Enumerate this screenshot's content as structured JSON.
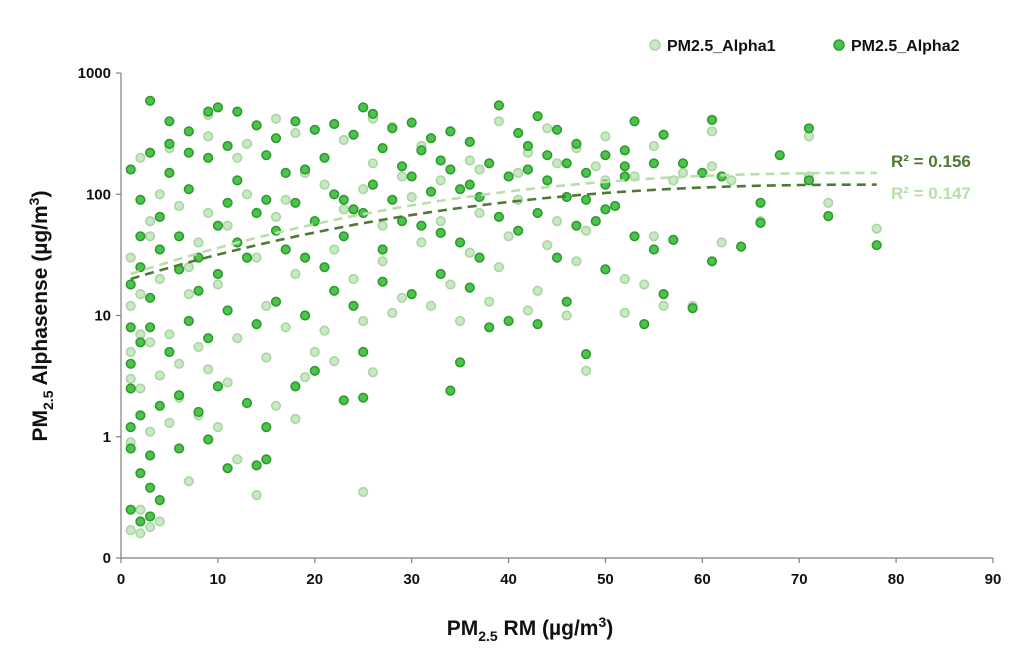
{
  "chart_data": {
    "type": "scatter",
    "xlabel": {
      "pre": "PM",
      "sub": "2.5",
      "post": " RM (µg/m",
      "sup": "3",
      "end": ")"
    },
    "ylabel": {
      "pre": "PM",
      "sub": "2.5",
      "post": "  Alphasense (µg/m",
      "sup": "3",
      "end": ")"
    },
    "xlim": [
      0,
      90
    ],
    "x_ticks": [
      0,
      10,
      20,
      30,
      40,
      50,
      60,
      70,
      80,
      90
    ],
    "y_scale": "log",
    "ylim": [
      0.1,
      1000
    ],
    "y_ticks": [
      {
        "value": 0.1,
        "label": "0"
      },
      {
        "value": 1,
        "label": "1"
      },
      {
        "value": 10,
        "label": "10"
      },
      {
        "value": 100,
        "label": "100"
      },
      {
        "value": 1000,
        "label": "1000"
      }
    ],
    "grid": false,
    "legend_position": "top-right",
    "series": [
      {
        "name": "PM2.5_Alpha1",
        "color": "#c9e8c4",
        "stroke": "#a9d6a2",
        "trendline": {
          "r2_label": "R² = 0.156",
          "from": [
            1,
            20
          ],
          "to": [
            78,
            120
          ]
        },
        "points": [
          [
            1,
            0.17
          ],
          [
            2,
            0.16
          ],
          [
            2,
            0.25
          ],
          [
            3,
            0.18
          ],
          [
            4,
            0.2
          ],
          [
            7,
            0.43
          ],
          [
            14,
            0.33
          ],
          [
            25,
            0.35
          ],
          [
            12,
            0.65
          ],
          [
            1,
            0.9
          ],
          [
            3,
            1.1
          ],
          [
            5,
            1.3
          ],
          [
            8,
            1.5
          ],
          [
            10,
            1.2
          ],
          [
            16,
            1.8
          ],
          [
            18,
            1.4
          ],
          [
            2,
            2.5
          ],
          [
            4,
            3.2
          ],
          [
            6,
            2.1
          ],
          [
            9,
            3.6
          ],
          [
            11,
            2.8
          ],
          [
            15,
            4.5
          ],
          [
            19,
            3.1
          ],
          [
            22,
            4.2
          ],
          [
            26,
            3.4
          ],
          [
            1,
            5
          ],
          [
            3,
            6
          ],
          [
            5,
            7
          ],
          [
            8,
            5.5
          ],
          [
            12,
            6.5
          ],
          [
            17,
            8
          ],
          [
            21,
            7.5
          ],
          [
            25,
            9
          ],
          [
            28,
            10.5
          ],
          [
            32,
            12
          ],
          [
            35,
            9
          ],
          [
            38,
            13
          ],
          [
            42,
            11
          ],
          [
            46,
            10
          ],
          [
            48,
            3.5
          ],
          [
            52,
            10.5
          ],
          [
            2,
            15
          ],
          [
            4,
            20
          ],
          [
            7,
            25
          ],
          [
            10,
            18
          ],
          [
            14,
            30
          ],
          [
            18,
            22
          ],
          [
            22,
            35
          ],
          [
            27,
            28
          ],
          [
            31,
            40
          ],
          [
            36,
            33
          ],
          [
            40,
            45
          ],
          [
            44,
            38
          ],
          [
            48,
            50
          ],
          [
            52,
            20
          ],
          [
            56,
            12
          ],
          [
            59,
            12
          ],
          [
            62,
            40
          ],
          [
            3,
            60
          ],
          [
            6,
            80
          ],
          [
            9,
            70
          ],
          [
            13,
            100
          ],
          [
            17,
            90
          ],
          [
            21,
            120
          ],
          [
            25,
            110
          ],
          [
            29,
            140
          ],
          [
            33,
            130
          ],
          [
            37,
            160
          ],
          [
            41,
            150
          ],
          [
            45,
            180
          ],
          [
            49,
            170
          ],
          [
            53,
            140
          ],
          [
            57,
            130
          ],
          [
            61,
            170
          ],
          [
            66,
            60
          ],
          [
            71,
            140
          ],
          [
            73,
            85
          ],
          [
            78,
            52
          ],
          [
            2,
            200
          ],
          [
            5,
            240
          ],
          [
            9,
            300
          ],
          [
            13,
            260
          ],
          [
            18,
            320
          ],
          [
            23,
            280
          ],
          [
            28,
            360
          ],
          [
            34,
            330
          ],
          [
            39,
            400
          ],
          [
            44,
            350
          ],
          [
            50,
            300
          ],
          [
            55,
            250
          ],
          [
            61,
            330
          ],
          [
            71,
            300
          ],
          [
            1,
            30
          ],
          [
            1,
            12
          ],
          [
            1,
            3
          ],
          [
            2,
            7
          ],
          [
            3,
            45
          ],
          [
            4,
            100
          ],
          [
            6,
            4
          ],
          [
            7,
            15
          ],
          [
            8,
            40
          ],
          [
            11,
            55
          ],
          [
            12,
            200
          ],
          [
            15,
            12
          ],
          [
            16,
            65
          ],
          [
            19,
            150
          ],
          [
            20,
            5
          ],
          [
            23,
            75
          ],
          [
            24,
            20
          ],
          [
            26,
            180
          ],
          [
            27,
            55
          ],
          [
            29,
            14
          ],
          [
            30,
            95
          ],
          [
            33,
            60
          ],
          [
            34,
            18
          ],
          [
            37,
            70
          ],
          [
            39,
            25
          ],
          [
            41,
            90
          ],
          [
            43,
            16
          ],
          [
            45,
            60
          ],
          [
            47,
            28
          ],
          [
            50,
            130
          ],
          [
            54,
            18
          ],
          [
            55,
            45
          ],
          [
            58,
            150
          ],
          [
            63,
            130
          ],
          [
            42,
            220
          ],
          [
            31,
            250
          ],
          [
            26,
            420
          ],
          [
            16,
            420
          ],
          [
            9,
            450
          ],
          [
            36,
            190
          ],
          [
            47,
            240
          ]
        ]
      },
      {
        "name": "PM2.5_Alpha2",
        "color": "#4cc44c",
        "stroke": "#2e9a2e",
        "trendline": {
          "r2_label": "R² = 0.147",
          "from": [
            1,
            22
          ],
          "to": [
            78,
            150
          ]
        },
        "points": [
          [
            2,
            0.2
          ],
          [
            3,
            0.22
          ],
          [
            1,
            0.25
          ],
          [
            4,
            0.3
          ],
          [
            3,
            0.38
          ],
          [
            2,
            0.5
          ],
          [
            3,
            0.7
          ],
          [
            1,
            0.8
          ],
          [
            6,
            0.8
          ],
          [
            9,
            0.95
          ],
          [
            11,
            0.55
          ],
          [
            14,
            0.58
          ],
          [
            15,
            0.65
          ],
          [
            1,
            1.2
          ],
          [
            2,
            1.5
          ],
          [
            4,
            1.8
          ],
          [
            6,
            2.2
          ],
          [
            8,
            1.6
          ],
          [
            10,
            2.6
          ],
          [
            13,
            1.9
          ],
          [
            15,
            1.2
          ],
          [
            18,
            2.6
          ],
          [
            20,
            3.5
          ],
          [
            23,
            2
          ],
          [
            25,
            2.1
          ],
          [
            25,
            5
          ],
          [
            34,
            2.4
          ],
          [
            35,
            4.1
          ],
          [
            48,
            4.8
          ],
          [
            1,
            4
          ],
          [
            2,
            6
          ],
          [
            3,
            8
          ],
          [
            5,
            5
          ],
          [
            7,
            9
          ],
          [
            9,
            6.5
          ],
          [
            11,
            11
          ],
          [
            14,
            8.5
          ],
          [
            16,
            13
          ],
          [
            19,
            10
          ],
          [
            22,
            16
          ],
          [
            24,
            12
          ],
          [
            27,
            19
          ],
          [
            30,
            15
          ],
          [
            33,
            22
          ],
          [
            36,
            17
          ],
          [
            38,
            8
          ],
          [
            40,
            9
          ],
          [
            43,
            8.5
          ],
          [
            46,
            13
          ],
          [
            50,
            24
          ],
          [
            54,
            8.5
          ],
          [
            56,
            15
          ],
          [
            59,
            11.5
          ],
          [
            61,
            28
          ],
          [
            64,
            37
          ],
          [
            66,
            58
          ],
          [
            73,
            66
          ],
          [
            78,
            38
          ],
          [
            2,
            25
          ],
          [
            4,
            35
          ],
          [
            6,
            45
          ],
          [
            8,
            30
          ],
          [
            10,
            55
          ],
          [
            12,
            40
          ],
          [
            14,
            70
          ],
          [
            16,
            50
          ],
          [
            18,
            85
          ],
          [
            20,
            60
          ],
          [
            22,
            100
          ],
          [
            24,
            75
          ],
          [
            26,
            120
          ],
          [
            28,
            90
          ],
          [
            30,
            140
          ],
          [
            32,
            105
          ],
          [
            34,
            160
          ],
          [
            36,
            120
          ],
          [
            38,
            180
          ],
          [
            40,
            140
          ],
          [
            42,
            160
          ],
          [
            44,
            130
          ],
          [
            46,
            180
          ],
          [
            48,
            150
          ],
          [
            50,
            120
          ],
          [
            52,
            140
          ],
          [
            55,
            35
          ],
          [
            58,
            180
          ],
          [
            60,
            150
          ],
          [
            62,
            140
          ],
          [
            66,
            85
          ],
          [
            68,
            210
          ],
          [
            71,
            130
          ],
          [
            1,
            160
          ],
          [
            3,
            220
          ],
          [
            5,
            260
          ],
          [
            7,
            330
          ],
          [
            9,
            480
          ],
          [
            10,
            520
          ],
          [
            12,
            480
          ],
          [
            14,
            370
          ],
          [
            16,
            290
          ],
          [
            18,
            400
          ],
          [
            20,
            340
          ],
          [
            22,
            380
          ],
          [
            24,
            310
          ],
          [
            25,
            520
          ],
          [
            26,
            460
          ],
          [
            28,
            350
          ],
          [
            30,
            390
          ],
          [
            32,
            290
          ],
          [
            34,
            330
          ],
          [
            36,
            270
          ],
          [
            39,
            540
          ],
          [
            41,
            320
          ],
          [
            43,
            440
          ],
          [
            45,
            340
          ],
          [
            47,
            260
          ],
          [
            50,
            210
          ],
          [
            52,
            170
          ],
          [
            53,
            400
          ],
          [
            56,
            310
          ],
          [
            61,
            410
          ],
          [
            71,
            350
          ],
          [
            3,
            590
          ],
          [
            5,
            400
          ],
          [
            7,
            220
          ],
          [
            11,
            250
          ],
          [
            15,
            90
          ],
          [
            17,
            150
          ],
          [
            19,
            30
          ],
          [
            21,
            25
          ],
          [
            23,
            45
          ],
          [
            27,
            35
          ],
          [
            29,
            60
          ],
          [
            31,
            55
          ],
          [
            33,
            48
          ],
          [
            35,
            40
          ],
          [
            37,
            30
          ],
          [
            39,
            65
          ],
          [
            41,
            50
          ],
          [
            43,
            70
          ],
          [
            45,
            30
          ],
          [
            47,
            55
          ],
          [
            49,
            60
          ],
          [
            51,
            80
          ],
          [
            53,
            45
          ],
          [
            55,
            180
          ],
          [
            1,
            18
          ],
          [
            1,
            8
          ],
          [
            1,
            2.5
          ],
          [
            2,
            45
          ],
          [
            2,
            90
          ],
          [
            3,
            14
          ],
          [
            4,
            65
          ],
          [
            5,
            150
          ],
          [
            6,
            24
          ],
          [
            7,
            110
          ],
          [
            8,
            16
          ],
          [
            9,
            200
          ],
          [
            10,
            22
          ],
          [
            11,
            85
          ],
          [
            12,
            130
          ],
          [
            13,
            30
          ],
          [
            15,
            210
          ],
          [
            17,
            35
          ],
          [
            19,
            160
          ],
          [
            21,
            200
          ],
          [
            23,
            90
          ],
          [
            25,
            70
          ],
          [
            27,
            240
          ],
          [
            29,
            170
          ],
          [
            31,
            230
          ],
          [
            33,
            190
          ],
          [
            35,
            110
          ],
          [
            37,
            95
          ],
          [
            42,
            250
          ],
          [
            44,
            210
          ],
          [
            46,
            95
          ],
          [
            48,
            90
          ],
          [
            50,
            75
          ],
          [
            52,
            230
          ],
          [
            57,
            42
          ]
        ]
      }
    ]
  }
}
